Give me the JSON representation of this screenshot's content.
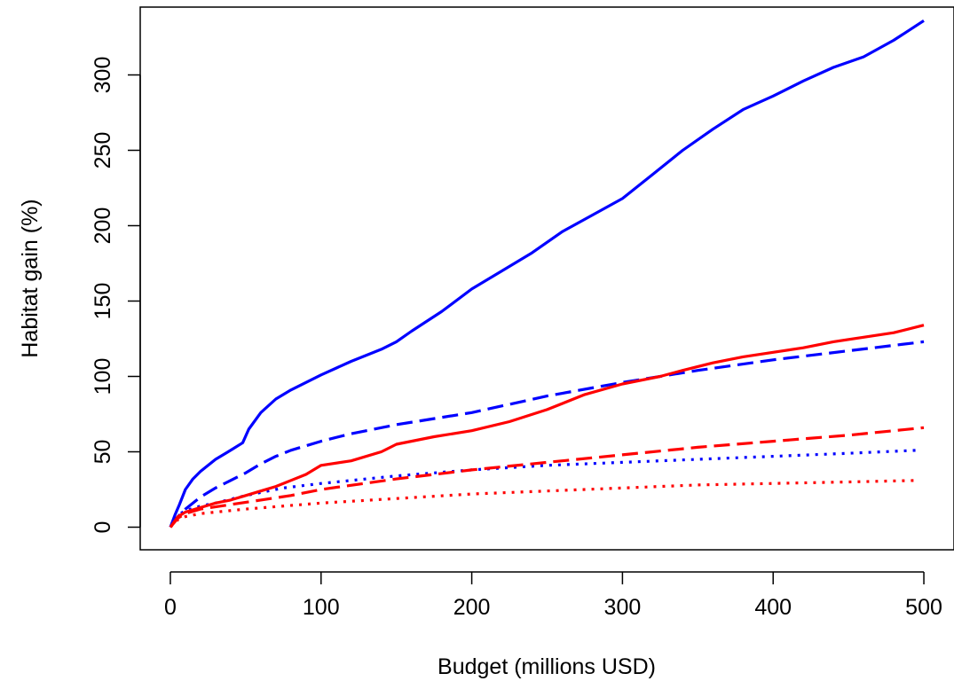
{
  "chart_data": {
    "type": "line",
    "title": "",
    "xlabel": "Budget (millions USD)",
    "ylabel": "Habitat gain (%)",
    "xlim": [
      -20,
      520
    ],
    "ylim": [
      -15,
      345
    ],
    "xticks": [
      0,
      100,
      200,
      300,
      400,
      500
    ],
    "yticks": [
      0,
      50,
      100,
      150,
      200,
      250,
      300
    ],
    "grid": false,
    "legend": "none",
    "series": [
      {
        "color": "#0000ff",
        "linestyle": "solid",
        "x": [
          0,
          3,
          6,
          10,
          15,
          20,
          30,
          40,
          48,
          52,
          60,
          70,
          80,
          90,
          100,
          120,
          140,
          150,
          160,
          180,
          200,
          220,
          240,
          260,
          280,
          300,
          320,
          340,
          360,
          380,
          400,
          420,
          440,
          460,
          480,
          500
        ],
        "y": [
          0,
          8,
          15,
          25,
          32,
          37,
          45,
          51,
          56,
          65,
          76,
          85,
          91,
          96,
          101,
          110,
          118,
          123,
          130,
          143,
          158,
          170,
          182,
          196,
          207,
          218,
          234,
          250,
          264,
          277,
          286,
          296,
          305,
          312,
          323,
          336
        ]
      },
      {
        "color": "#0000ff",
        "linestyle": "dashed",
        "x": [
          0,
          5,
          10,
          20,
          30,
          40,
          50,
          60,
          70,
          80,
          100,
          120,
          150,
          200,
          250,
          300,
          350,
          400,
          450,
          500
        ],
        "y": [
          0,
          7,
          12,
          20,
          26,
          31,
          36,
          42,
          47,
          51,
          57,
          62,
          68,
          76,
          87,
          96,
          104,
          111,
          117,
          123
        ]
      },
      {
        "color": "#0000ff",
        "linestyle": "dotted",
        "x": [
          0,
          5,
          10,
          20,
          30,
          50,
          75,
          100,
          150,
          200,
          250,
          300,
          350,
          400,
          450,
          495
        ],
        "y": [
          0,
          8,
          11,
          14,
          16,
          21,
          26,
          29,
          34,
          38,
          41,
          43,
          45,
          47,
          49,
          51
        ]
      },
      {
        "color": "#ff0000",
        "linestyle": "solid",
        "x": [
          0,
          5,
          10,
          20,
          30,
          40,
          50,
          60,
          70,
          80,
          90,
          100,
          120,
          140,
          150,
          175,
          200,
          225,
          250,
          275,
          300,
          325,
          340,
          360,
          380,
          400,
          420,
          440,
          460,
          480,
          500
        ],
        "y": [
          0,
          7,
          10,
          13,
          16,
          18,
          21,
          24,
          27,
          31,
          35,
          41,
          44,
          50,
          55,
          60,
          64,
          70,
          78,
          88,
          95,
          100,
          104,
          109,
          113,
          116,
          119,
          123,
          126,
          129,
          134
        ]
      },
      {
        "color": "#ff0000",
        "linestyle": "dashed",
        "x": [
          0,
          5,
          10,
          20,
          40,
          60,
          80,
          100,
          150,
          200,
          250,
          300,
          350,
          400,
          450,
          500
        ],
        "y": [
          0,
          6,
          9,
          12,
          15,
          18,
          21,
          25,
          32,
          38,
          43,
          48,
          53,
          57,
          61,
          66
        ]
      },
      {
        "color": "#ff0000",
        "linestyle": "dotted",
        "x": [
          0,
          5,
          10,
          20,
          50,
          100,
          150,
          200,
          250,
          300,
          350,
          400,
          450,
          495
        ],
        "y": [
          0,
          5,
          7,
          9,
          12,
          16,
          19,
          22,
          24,
          26,
          28,
          29,
          30,
          31
        ]
      }
    ]
  }
}
